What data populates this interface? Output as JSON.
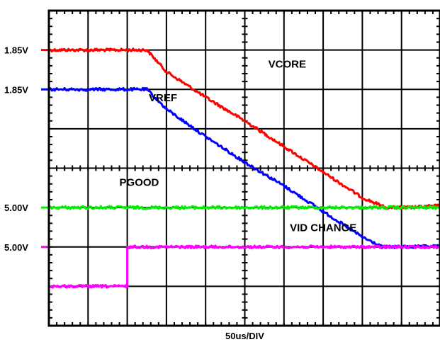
{
  "chart_data": {
    "type": "line",
    "title": "",
    "xlabel": "50us/DIV",
    "ylabel": "",
    "x_divisions": 10,
    "y_divisions": 8,
    "grid": true,
    "left_markers": [
      {
        "label": "1.85V",
        "series": "VCORE",
        "div": 1.0
      },
      {
        "label": "1.85V",
        "series": "VREF",
        "div": 2.0
      },
      {
        "label": "5.00V",
        "series": "PGOOD",
        "div": 5.0
      },
      {
        "label": "5.00V",
        "series": "VID CHANGE",
        "div": 6.0
      }
    ],
    "series": [
      {
        "name": "VCORE",
        "color": "#ff0000",
        "points": [
          [
            0,
            1.0
          ],
          [
            1.0,
            1.0
          ],
          [
            2.5,
            1.0
          ],
          [
            3.0,
            1.55
          ],
          [
            4.0,
            2.2
          ],
          [
            5.0,
            2.8
          ],
          [
            6.0,
            3.45
          ],
          [
            7.0,
            4.1
          ],
          [
            8.0,
            4.75
          ],
          [
            8.6,
            5.0
          ],
          [
            9.2,
            5.0
          ],
          [
            10,
            4.95
          ]
        ]
      },
      {
        "name": "VREF",
        "color": "#0000ff",
        "points": [
          [
            0,
            2.0
          ],
          [
            1.0,
            2.0
          ],
          [
            2.5,
            2.0
          ],
          [
            3.0,
            2.5
          ],
          [
            4.0,
            3.2
          ],
          [
            5.0,
            3.85
          ],
          [
            6.0,
            4.45
          ],
          [
            7.0,
            5.1
          ],
          [
            8.0,
            5.75
          ],
          [
            8.5,
            6.0
          ],
          [
            9.2,
            6.0
          ],
          [
            10,
            5.98
          ]
        ]
      },
      {
        "name": "PGOOD",
        "color": "#00ee00",
        "points": [
          [
            0,
            5.0
          ],
          [
            10,
            5.0
          ]
        ]
      },
      {
        "name": "VID CHANGE",
        "color": "#ff00ff",
        "points": [
          [
            0,
            7.0
          ],
          [
            2.0,
            7.0
          ],
          [
            2.0,
            6.0
          ],
          [
            10,
            6.0
          ]
        ]
      }
    ],
    "trace_labels": [
      {
        "text": "VCORE",
        "dx": 5.6,
        "dy": 1.45
      },
      {
        "text": "VREF",
        "dx": 2.55,
        "dy": 2.3
      },
      {
        "text": "PGOOD",
        "dx": 1.8,
        "dy": 4.45
      },
      {
        "text": "VID CHANGE",
        "dx": 6.15,
        "dy": 5.6
      }
    ]
  }
}
